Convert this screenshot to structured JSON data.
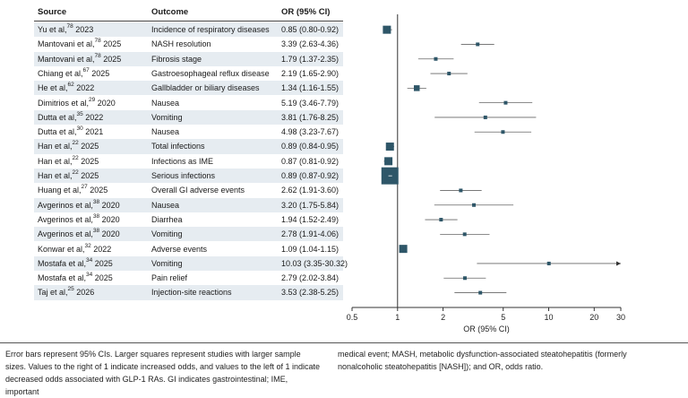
{
  "headers": {
    "source": "Source",
    "outcome": "Outcome",
    "or": "OR (95% CI)"
  },
  "rows": [
    {
      "author": "Yu et al,",
      "ref": "78",
      "year": "2023",
      "outcome": "Incidence of respiratory diseases",
      "or_text": "0.85 (0.80-0.92)"
    },
    {
      "author": "Mantovani et al,",
      "ref": "78",
      "year": "2025",
      "outcome": "NASH resolution",
      "or_text": "3.39 (2.63-4.36)"
    },
    {
      "author": "Mantovani et al,",
      "ref": "78",
      "year": "2025",
      "outcome": "Fibrosis stage",
      "or_text": "1.79 (1.37-2.35)"
    },
    {
      "author": "Chiang et al,",
      "ref": "67",
      "year": "2025",
      "outcome": "Gastroesophageal reflux disease",
      "or_text": "2.19 (1.65-2.90)"
    },
    {
      "author": "He et al,",
      "ref": "62",
      "year": "2022",
      "outcome": "Gallbladder or biliary diseases",
      "or_text": "1.34 (1.16-1.55)"
    },
    {
      "author": "Dimitrios et al,",
      "ref": "29",
      "year": "2020",
      "outcome": "Nausea",
      "or_text": "5.19 (3.46-7.79)"
    },
    {
      "author": "Dutta et al,",
      "ref": "35",
      "year": "2022",
      "outcome": "Vomiting",
      "or_text": "3.81 (1.76-8.25)"
    },
    {
      "author": "Dutta et al,",
      "ref": "30",
      "year": "2021",
      "outcome": "Nausea",
      "or_text": "4.98 (3.23-7.67)"
    },
    {
      "author": "Han et al,",
      "ref": "22",
      "year": "2025",
      "outcome": "Total infections",
      "or_text": "0.89 (0.84-0.95)"
    },
    {
      "author": "Han et al,",
      "ref": "22",
      "year": "2025",
      "outcome": "Infections as IME",
      "or_text": "0.87 (0.81-0.92)"
    },
    {
      "author": "Han et al,",
      "ref": "22",
      "year": "2025",
      "outcome": "Serious infections",
      "or_text": "0.89 (0.87-0.92)"
    },
    {
      "author": "Huang et al,",
      "ref": "27",
      "year": "2025",
      "outcome": "Overall GI adverse events",
      "or_text": "2.62 (1.91-3.60)"
    },
    {
      "author": "Avgerinos et al,",
      "ref": "38",
      "year": "2020",
      "outcome": "Nausea",
      "or_text": "3.20 (1.75-5.84)"
    },
    {
      "author": "Avgerinos et al,",
      "ref": "38",
      "year": "2020",
      "outcome": "Diarrhea",
      "or_text": "1.94 (1.52-2.49)"
    },
    {
      "author": "Avgerinos et al,",
      "ref": "38",
      "year": "2020",
      "outcome": "Vomiting",
      "or_text": "2.78 (1.91-4.06)"
    },
    {
      "author": "Konwar et al,",
      "ref": "32",
      "year": "2022",
      "outcome": "Adverse events",
      "or_text": "1.09 (1.04-1.15)"
    },
    {
      "author": "Mostafa et al,",
      "ref": "34",
      "year": "2025",
      "outcome": "Vomiting",
      "or_text": "10.03 (3.35-30.32)"
    },
    {
      "author": "Mostafa et al,",
      "ref": "34",
      "year": "2025",
      "outcome": "Pain relief",
      "or_text": "2.79 (2.02-3.84)"
    },
    {
      "author": "Taj et al,",
      "ref": "25",
      "year": "2026",
      "outcome": "Injection-site reactions",
      "or_text": "3.53 (2.38-5.25)"
    }
  ],
  "chart_data": {
    "type": "forest",
    "xlabel": "OR (95% CI)",
    "xscale": "log",
    "xlim": [
      0.5,
      30
    ],
    "xticks": [
      0.5,
      1,
      2,
      5,
      10,
      20,
      30
    ],
    "xtick_labels": [
      "0.5",
      "1",
      "2",
      "5",
      "10",
      "20",
      "30"
    ],
    "reference_line": 1,
    "marker_color": "#2e5668",
    "points": [
      {
        "or": 0.85,
        "lo": 0.8,
        "hi": 0.92,
        "weight": "medium"
      },
      {
        "or": 3.39,
        "lo": 2.63,
        "hi": 4.36,
        "weight": "small"
      },
      {
        "or": 1.79,
        "lo": 1.37,
        "hi": 2.35,
        "weight": "small"
      },
      {
        "or": 2.19,
        "lo": 1.65,
        "hi": 2.9,
        "weight": "small"
      },
      {
        "or": 1.34,
        "lo": 1.16,
        "hi": 1.55,
        "weight": "small-medium"
      },
      {
        "or": 5.19,
        "lo": 3.46,
        "hi": 7.79,
        "weight": "small"
      },
      {
        "or": 3.81,
        "lo": 1.76,
        "hi": 8.25,
        "weight": "small"
      },
      {
        "or": 4.98,
        "lo": 3.23,
        "hi": 7.67,
        "weight": "small"
      },
      {
        "or": 0.89,
        "lo": 0.84,
        "hi": 0.95,
        "weight": "medium"
      },
      {
        "or": 0.87,
        "lo": 0.81,
        "hi": 0.92,
        "weight": "medium"
      },
      {
        "or": 0.89,
        "lo": 0.87,
        "hi": 0.92,
        "weight": "large"
      },
      {
        "or": 2.62,
        "lo": 1.91,
        "hi": 3.6,
        "weight": "small"
      },
      {
        "or": 3.2,
        "lo": 1.75,
        "hi": 5.84,
        "weight": "small"
      },
      {
        "or": 1.94,
        "lo": 1.52,
        "hi": 2.49,
        "weight": "small"
      },
      {
        "or": 2.78,
        "lo": 1.91,
        "hi": 4.06,
        "weight": "small"
      },
      {
        "or": 1.09,
        "lo": 1.04,
        "hi": 1.15,
        "weight": "medium"
      },
      {
        "or": 10.03,
        "lo": 3.35,
        "hi": 30.32,
        "weight": "small",
        "arrow_right": true
      },
      {
        "or": 2.79,
        "lo": 2.02,
        "hi": 3.84,
        "weight": "small"
      },
      {
        "or": 3.53,
        "lo": 2.38,
        "hi": 5.25,
        "weight": "small"
      }
    ]
  },
  "footnote": {
    "left": "Error bars represent 95% CIs. Larger squares represent studies with larger sample sizes. Values to the right of 1 indicate increased odds, and values to the left of 1 indicate decreased odds associated with GLP-1 RAs. GI indicates gastrointestinal; IME, important",
    "right": "medical event; MASH, metabolic dysfunction-associated steatohepatitis (formerly nonalcoholic steatohepatitis [NASH]); and OR, odds ratio."
  }
}
